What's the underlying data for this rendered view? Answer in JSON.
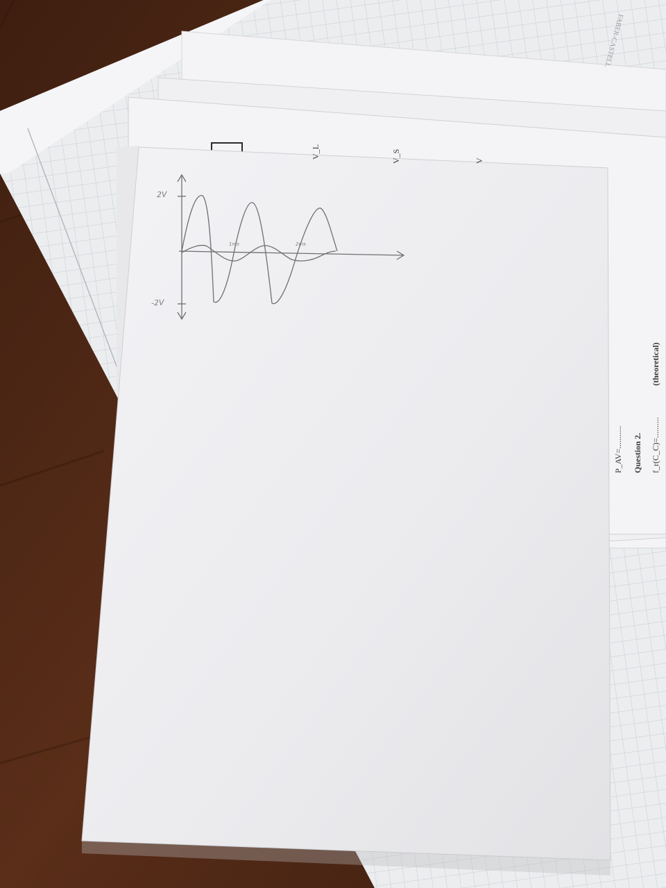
{
  "scene": {
    "wood_color": "#4a2616",
    "paper_color": "#f2f2f4",
    "grid_paper_color": "#eaecee",
    "pencil_color": "#6f6f6f"
  },
  "notebook_brand": "FABER-CASTELL",
  "under_sheet": {
    "labels": [
      "V_L",
      "V_S",
      "V"
    ],
    "lines": [
      {
        "text": "P_AV=..........."
      },
      {
        "text": "Question 2."
      },
      {
        "text": "f_r(C_C)=.........."
      },
      {
        "text": "(theoretical)"
      }
    ]
  },
  "sketch": {
    "y_max_label": "2V",
    "y_min_label": "-2V",
    "t1_label": "1ms",
    "t2_label": "2ms"
  }
}
